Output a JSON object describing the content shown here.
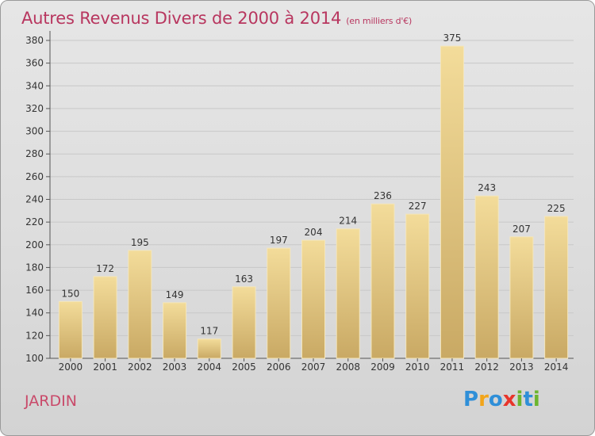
{
  "chart_data": {
    "type": "bar",
    "title": "Autres Revenus Divers de 2000 à 2014",
    "subtitle": "(en milliers d'€)",
    "categories": [
      "2000",
      "2001",
      "2002",
      "2003",
      "2004",
      "2005",
      "2006",
      "2007",
      "2008",
      "2009",
      "2010",
      "2011",
      "2012",
      "2013",
      "2014"
    ],
    "values": [
      150,
      172,
      195,
      149,
      117,
      163,
      197,
      204,
      214,
      236,
      227,
      375,
      243,
      207,
      225
    ],
    "ylim": [
      100,
      380
    ],
    "yticks": [
      100,
      120,
      140,
      160,
      180,
      200,
      220,
      240,
      260,
      280,
      300,
      320,
      340,
      360,
      380
    ],
    "grid": true,
    "bar_color": "#e6cb82"
  },
  "commune": "JARDIN",
  "logo": {
    "letters": [
      "P",
      "r",
      "o",
      "x",
      "i",
      "t",
      "i"
    ],
    "colors": [
      "#2f8fd8",
      "#f2a51a",
      "#2f8fd8",
      "#e8352b",
      "#6cb52f",
      "#2f8fd8",
      "#6cb52f"
    ]
  }
}
